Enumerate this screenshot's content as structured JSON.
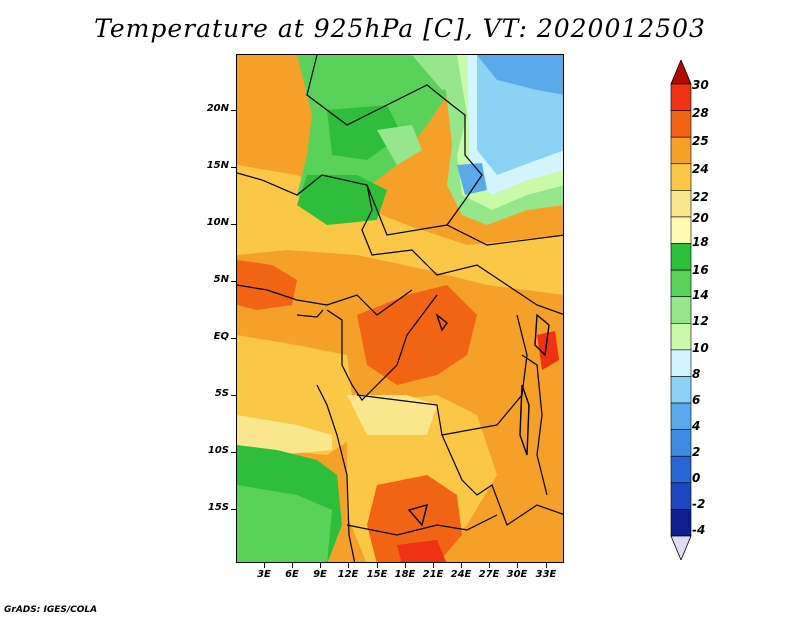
{
  "title": "Temperature at 925hPa [C], VT: 2020012503",
  "credit": "GrADS: IGES/COLA",
  "y_ticks": [
    "20N",
    "15N",
    "10N",
    "5N",
    "EQ",
    "5S",
    "10S",
    "15S"
  ],
  "x_ticks": [
    "3E",
    "6E",
    "9E",
    "12E",
    "15E",
    "18E",
    "21E",
    "24E",
    "27E",
    "30E",
    "33E"
  ],
  "colorbar": {
    "labels": [
      "30",
      "28",
      "25",
      "24",
      "22",
      "20",
      "18",
      "16",
      "14",
      "12",
      "10",
      "8",
      "6",
      "4",
      "2",
      "0",
      "-2",
      "-4"
    ],
    "colors": [
      "#f03214",
      "#f06414",
      "#f5a028",
      "#fac846",
      "#fae68c",
      "#fffab4",
      "#2fbe3c",
      "#5ad25a",
      "#96e68c",
      "#c8faaa",
      "#d2f5ff",
      "#8cd2f5",
      "#5aaaeb",
      "#3c8ce1",
      "#2864d2",
      "#1e46be",
      "#0f1e8c"
    ],
    "top_arrow_color": "#b40a00",
    "bottom_arrow_color": "#dcdcf5"
  }
}
